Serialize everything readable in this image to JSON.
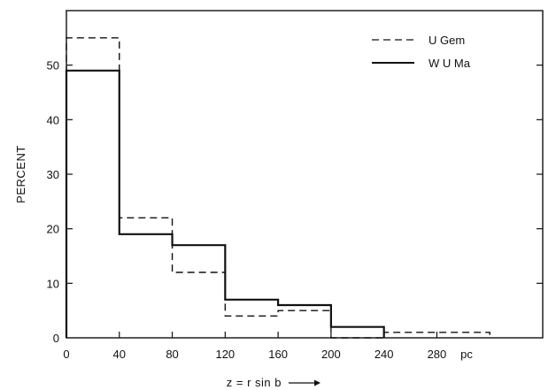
{
  "chart_data": {
    "type": "histogram",
    "x_bin_edges": [
      0,
      40,
      80,
      120,
      160,
      200,
      240,
      280,
      320
    ],
    "x_ticks": [
      0,
      40,
      80,
      120,
      160,
      200,
      240,
      280
    ],
    "x_unit_label": "pc",
    "xlabel": "z = r sin b",
    "ylabel": "PERCENT",
    "y_ticks": [
      0,
      10,
      20,
      30,
      40,
      50
    ],
    "xlim": [
      0,
      360
    ],
    "ylim": [
      0,
      60
    ],
    "grid": false,
    "legend_position": "top-right",
    "series": [
      {
        "name": "U Gem",
        "line_style": "dashed",
        "values": [
          55,
          22,
          12,
          4,
          5,
          0,
          1,
          1
        ]
      },
      {
        "name": "W U Ma",
        "line_style": "solid",
        "values": [
          49,
          19,
          17,
          7,
          6,
          2,
          0,
          0
        ]
      }
    ]
  }
}
